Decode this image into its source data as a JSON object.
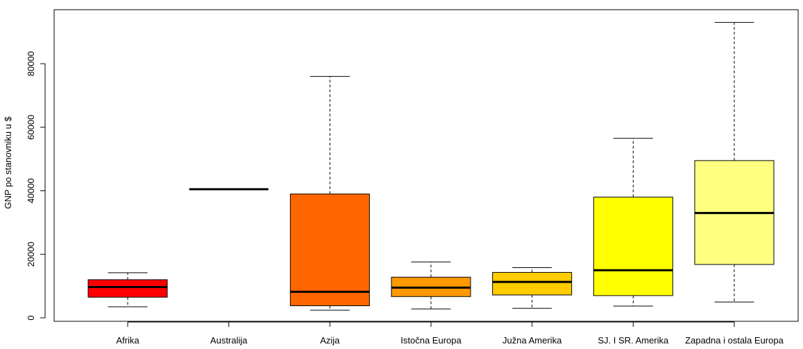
{
  "chart_data": {
    "type": "boxplot",
    "title": "",
    "xlabel": "",
    "ylabel": "GNP po stanovniku u $",
    "ylim": [
      -1000,
      97000
    ],
    "yticks": [
      0,
      20000,
      40000,
      60000,
      80000
    ],
    "grid": false,
    "legend": "none",
    "categories": [
      "Afrika",
      "Australija",
      "Azija",
      "Istočna Europa",
      "Južna Amerika",
      "SJ. I SR. Amerika",
      "Zapadna i ostala Europa"
    ],
    "boxes": [
      {
        "category": "Afrika",
        "whisker_low": 3500,
        "q1": 6500,
        "median": 9700,
        "q3": 12000,
        "whisker_high": 14200,
        "color": "#FF0000"
      },
      {
        "category": "Australija",
        "whisker_low": 40500,
        "q1": 40500,
        "median": 40500,
        "q3": 40500,
        "whisker_high": 40500,
        "color": "#FF2A00"
      },
      {
        "category": "Azija",
        "whisker_low": 2400,
        "q1": 3800,
        "median": 8200,
        "q3": 39000,
        "whisker_high": 76000,
        "color": "#FF6600"
      },
      {
        "category": "Istočna Europa",
        "whisker_low": 2800,
        "q1": 6700,
        "median": 9500,
        "q3": 12800,
        "whisker_high": 17600,
        "color": "#FF9900"
      },
      {
        "category": "Južna Amerika",
        "whisker_low": 3000,
        "q1": 7200,
        "median": 11300,
        "q3": 14300,
        "whisker_high": 15800,
        "color": "#FFCC00"
      },
      {
        "category": "SJ. I SR. Amerika",
        "whisker_low": 3700,
        "q1": 7000,
        "median": 15000,
        "q3": 38000,
        "whisker_high": 56500,
        "color": "#FFFF00"
      },
      {
        "category": "Zapadna i ostala Europa",
        "whisker_low": 5000,
        "q1": 16800,
        "median": 33000,
        "q3": 49500,
        "whisker_high": 93000,
        "color": "#FFFF80"
      }
    ]
  }
}
